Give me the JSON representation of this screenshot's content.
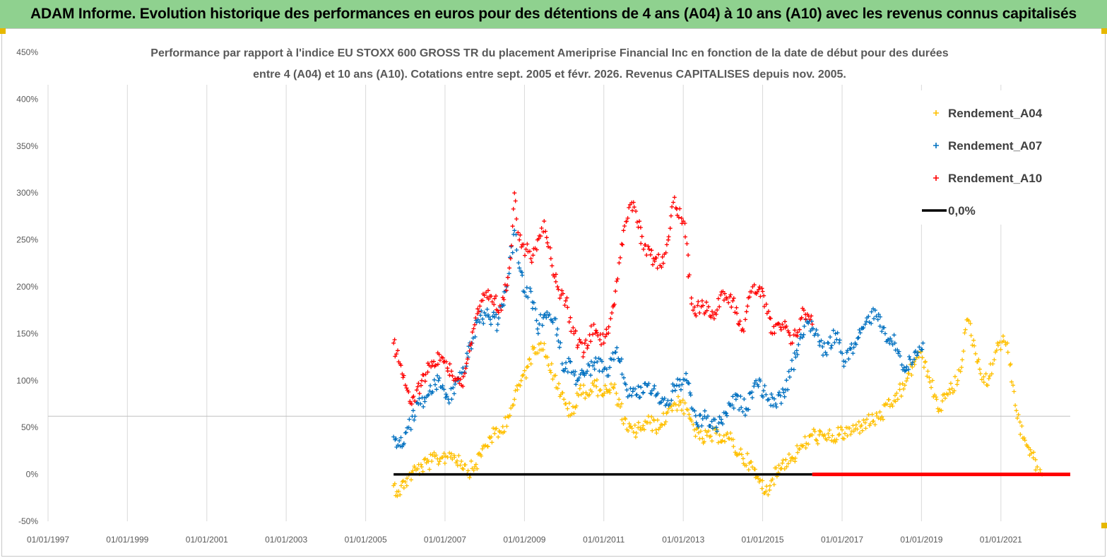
{
  "banner": {
    "title": "ADAM Informe. Evolution historique des performances en euros pour des détentions de 4 ans (A04) à 10 ans (A10) avec les revenus connus capitalisés"
  },
  "colors": {
    "banner_bg": "#8fd18f",
    "a04": "#ffc000",
    "a07": "#0070c0",
    "a10": "#ff0000",
    "zero_line": "#000000",
    "grid": "#d9d9d9",
    "text": "#595959"
  },
  "chart_data": {
    "type": "scatter",
    "title_lines": [
      "Performance par rapport à l'indice EU STOXX 600 GROSS TR  du placement Ameriprise Financial Inc en fonction de la date de début pour des durées",
      "entre 4 (A04) et 10 ans (A10). Cotations entre sept. 2005 et févr. 2026. Revenus CAPITALISES depuis nov. 2005."
    ],
    "x_axis": {
      "type": "date",
      "min": "1997-01-01",
      "max": "2022-10-01",
      "tick_labels": [
        "01/01/1997",
        "01/01/1999",
        "01/01/2001",
        "01/01/2003",
        "01/01/2005",
        "01/01/2007",
        "01/01/2009",
        "01/01/2011",
        "01/01/2013",
        "01/01/2015",
        "01/01/2017",
        "01/01/2019",
        "01/01/2021"
      ],
      "tick_dates": [
        "1997-01-01",
        "1999-01-01",
        "2001-01-01",
        "2003-01-01",
        "2005-01-01",
        "2007-01-01",
        "2009-01-01",
        "2011-01-01",
        "2013-01-01",
        "2015-01-01",
        "2017-01-01",
        "2019-01-01",
        "2021-01-01"
      ]
    },
    "y_axis": {
      "min": -50,
      "max": 450,
      "unit": "%",
      "ticks": [
        -50,
        0,
        50,
        100,
        150,
        200,
        250,
        300,
        350,
        400,
        450
      ],
      "tick_labels": [
        "-50%",
        "0%",
        "50%",
        "100%",
        "150%",
        "200%",
        "250%",
        "300%",
        "350%",
        "400%",
        "450%"
      ],
      "gridlines": false,
      "reference_line": 62
    },
    "legend": {
      "placement": "top-right",
      "entries": [
        "Rendement_A04",
        "Rendement_A07",
        "Rendement_A10",
        "0,0%"
      ]
    },
    "series": [
      {
        "name": "Rendement_A04",
        "color": "#ffc000",
        "marker": "+",
        "points": [
          [
            "2005-09-15",
            -12
          ],
          [
            "2005-11-01",
            -18
          ],
          [
            "2006-01-01",
            -8
          ],
          [
            "2006-03-01",
            2
          ],
          [
            "2006-06-01",
            8
          ],
          [
            "2006-09-01",
            14
          ],
          [
            "2006-12-01",
            18
          ],
          [
            "2007-03-01",
            22
          ],
          [
            "2007-06-01",
            14
          ],
          [
            "2007-08-01",
            4
          ],
          [
            "2007-10-01",
            8
          ],
          [
            "2008-01-01",
            30
          ],
          [
            "2008-03-01",
            40
          ],
          [
            "2008-06-01",
            45
          ],
          [
            "2008-08-01",
            62
          ],
          [
            "2008-10-01",
            80
          ],
          [
            "2008-12-01",
            100
          ],
          [
            "2009-02-01",
            115
          ],
          [
            "2009-04-01",
            135
          ],
          [
            "2009-06-01",
            140
          ],
          [
            "2009-08-01",
            125
          ],
          [
            "2009-10-01",
            105
          ],
          [
            "2009-12-01",
            85
          ],
          [
            "2010-02-01",
            70
          ],
          [
            "2010-04-01",
            65
          ],
          [
            "2010-06-01",
            95
          ],
          [
            "2010-08-01",
            85
          ],
          [
            "2010-10-01",
            95
          ],
          [
            "2010-12-01",
            90
          ],
          [
            "2011-02-01",
            88
          ],
          [
            "2011-04-01",
            92
          ],
          [
            "2011-06-01",
            72
          ],
          [
            "2011-08-01",
            48
          ],
          [
            "2011-10-01",
            45
          ],
          [
            "2011-12-01",
            50
          ],
          [
            "2012-03-01",
            55
          ],
          [
            "2012-06-01",
            50
          ],
          [
            "2012-09-01",
            72
          ],
          [
            "2012-12-01",
            78
          ],
          [
            "2013-03-01",
            60
          ],
          [
            "2013-06-01",
            38
          ],
          [
            "2013-09-01",
            40
          ],
          [
            "2013-12-01",
            42
          ],
          [
            "2014-03-01",
            38
          ],
          [
            "2014-06-01",
            22
          ],
          [
            "2014-09-01",
            12
          ],
          [
            "2014-12-01",
            -8
          ],
          [
            "2015-02-01",
            -18
          ],
          [
            "2015-04-01",
            -5
          ],
          [
            "2015-07-01",
            12
          ],
          [
            "2015-10-01",
            18
          ],
          [
            "2016-01-01",
            30
          ],
          [
            "2016-04-01",
            42
          ],
          [
            "2016-08-01",
            38
          ],
          [
            "2016-12-01",
            42
          ],
          [
            "2017-04-01",
            46
          ],
          [
            "2017-08-01",
            55
          ],
          [
            "2017-12-01",
            60
          ],
          [
            "2018-04-01",
            75
          ],
          [
            "2018-08-01",
            95
          ],
          [
            "2018-12-01",
            130
          ],
          [
            "2019-03-01",
            110
          ],
          [
            "2019-06-01",
            70
          ],
          [
            "2019-09-01",
            85
          ],
          [
            "2019-12-01",
            100
          ],
          [
            "2020-03-01",
            165
          ],
          [
            "2020-06-01",
            120
          ],
          [
            "2020-09-01",
            95
          ],
          [
            "2020-12-01",
            140
          ],
          [
            "2021-03-01",
            140
          ],
          [
            "2021-06-01",
            60
          ],
          [
            "2021-09-01",
            30
          ],
          [
            "2021-12-01",
            8
          ],
          [
            "2022-01-15",
            0
          ]
        ]
      },
      {
        "name": "Rendement_A07",
        "color": "#0070c0",
        "marker": "+",
        "points": [
          [
            "2005-09-15",
            40
          ],
          [
            "2005-11-15",
            30
          ],
          [
            "2006-02-01",
            50
          ],
          [
            "2006-05-01",
            75
          ],
          [
            "2006-08-01",
            85
          ],
          [
            "2006-11-01",
            100
          ],
          [
            "2007-02-01",
            80
          ],
          [
            "2007-05-01",
            100
          ],
          [
            "2007-08-01",
            125
          ],
          [
            "2007-11-01",
            165
          ],
          [
            "2008-02-01",
            170
          ],
          [
            "2008-05-01",
            160
          ],
          [
            "2008-08-01",
            210
          ],
          [
            "2008-10-01",
            260
          ],
          [
            "2008-11-15",
            220
          ],
          [
            "2009-01-15",
            190
          ],
          [
            "2009-03-01",
            195
          ],
          [
            "2009-05-01",
            155
          ],
          [
            "2009-07-01",
            170
          ],
          [
            "2009-09-01",
            165
          ],
          [
            "2009-11-01",
            155
          ],
          [
            "2010-01-01",
            110
          ],
          [
            "2010-03-01",
            120
          ],
          [
            "2010-05-01",
            100
          ],
          [
            "2010-08-01",
            110
          ],
          [
            "2010-11-01",
            120
          ],
          [
            "2011-02-01",
            105
          ],
          [
            "2011-05-01",
            135
          ],
          [
            "2011-08-01",
            90
          ],
          [
            "2011-11-01",
            85
          ],
          [
            "2012-02-01",
            95
          ],
          [
            "2012-05-01",
            85
          ],
          [
            "2012-08-01",
            75
          ],
          [
            "2012-11-01",
            95
          ],
          [
            "2013-02-01",
            100
          ],
          [
            "2013-05-01",
            55
          ],
          [
            "2013-08-01",
            60
          ],
          [
            "2013-11-01",
            50
          ],
          [
            "2014-02-01",
            65
          ],
          [
            "2014-05-01",
            80
          ],
          [
            "2014-08-01",
            70
          ],
          [
            "2014-11-01",
            100
          ],
          [
            "2015-02-01",
            85
          ],
          [
            "2015-05-01",
            75
          ],
          [
            "2015-08-01",
            90
          ],
          [
            "2015-11-01",
            125
          ],
          [
            "2016-02-01",
            165
          ],
          [
            "2016-05-01",
            150
          ],
          [
            "2016-08-01",
            130
          ],
          [
            "2016-11-01",
            150
          ],
          [
            "2017-02-01",
            120
          ],
          [
            "2017-05-01",
            140
          ],
          [
            "2017-08-01",
            160
          ],
          [
            "2017-11-01",
            175
          ],
          [
            "2018-02-01",
            150
          ],
          [
            "2018-05-01",
            140
          ],
          [
            "2018-08-01",
            110
          ],
          [
            "2018-11-01",
            130
          ],
          [
            "2019-01-15",
            140
          ]
        ]
      },
      {
        "name": "Rendement_A10",
        "color": "#ff0000",
        "marker": "+",
        "points": [
          [
            "2005-09-15",
            140
          ],
          [
            "2005-11-01",
            120
          ],
          [
            "2006-01-01",
            95
          ],
          [
            "2006-03-01",
            75
          ],
          [
            "2006-06-01",
            100
          ],
          [
            "2006-09-01",
            120
          ],
          [
            "2006-12-01",
            125
          ],
          [
            "2007-03-01",
            110
          ],
          [
            "2007-06-01",
            95
          ],
          [
            "2007-09-01",
            140
          ],
          [
            "2007-12-01",
            185
          ],
          [
            "2008-03-01",
            190
          ],
          [
            "2008-06-01",
            175
          ],
          [
            "2008-08-15",
            220
          ],
          [
            "2008-10-01",
            300
          ],
          [
            "2008-11-15",
            250
          ],
          [
            "2009-01-15",
            240
          ],
          [
            "2009-03-01",
            230
          ],
          [
            "2009-05-01",
            250
          ],
          [
            "2009-07-01",
            270
          ],
          [
            "2009-09-01",
            230
          ],
          [
            "2009-11-01",
            200
          ],
          [
            "2010-01-15",
            185
          ],
          [
            "2010-04-01",
            150
          ],
          [
            "2010-07-01",
            130
          ],
          [
            "2010-10-01",
            160
          ],
          [
            "2011-01-01",
            140
          ],
          [
            "2011-04-01",
            180
          ],
          [
            "2011-07-01",
            260
          ],
          [
            "2011-10-01",
            290
          ],
          [
            "2012-01-01",
            240
          ],
          [
            "2012-04-01",
            230
          ],
          [
            "2012-07-01",
            225
          ],
          [
            "2012-10-01",
            290
          ],
          [
            "2013-01-01",
            270
          ],
          [
            "2013-04-01",
            175
          ],
          [
            "2013-07-01",
            180
          ],
          [
            "2013-10-01",
            170
          ],
          [
            "2014-01-01",
            195
          ],
          [
            "2014-04-01",
            185
          ],
          [
            "2014-07-01",
            155
          ],
          [
            "2014-10-01",
            200
          ],
          [
            "2015-01-01",
            195
          ],
          [
            "2015-04-01",
            150
          ],
          [
            "2015-07-01",
            160
          ],
          [
            "2015-10-01",
            140
          ],
          [
            "2016-01-15",
            175
          ],
          [
            "2016-04-01",
            160
          ]
        ]
      },
      {
        "name": "0,0%",
        "color": "#000000",
        "type": "line",
        "points": [
          [
            "2005-09-15",
            0
          ],
          [
            "2016-04-01",
            0
          ]
        ]
      },
      {
        "name": "Rendement_A10 (0)",
        "color": "#ff0000",
        "type": "line",
        "points": [
          [
            "2016-04-01",
            0
          ],
          [
            "2022-10-01",
            0
          ]
        ]
      }
    ]
  }
}
